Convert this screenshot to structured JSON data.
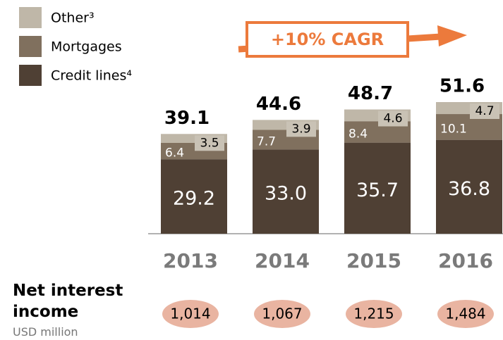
{
  "chart_data": {
    "type": "bar",
    "stacked": true,
    "categories": [
      "2013",
      "2014",
      "2015",
      "2016"
    ],
    "series": [
      {
        "name": "Credit lines⁴",
        "color": "#4f4034",
        "values": [
          29.2,
          33.0,
          35.7,
          36.8
        ],
        "value_labels": [
          "29.2",
          "33.0",
          "35.7",
          "36.8"
        ]
      },
      {
        "name": "Mortgages",
        "color": "#80705e",
        "values": [
          6.4,
          7.7,
          8.4,
          10.1
        ],
        "value_labels": [
          "6.4",
          "7.7",
          "8.4",
          "10.1"
        ]
      },
      {
        "name": "Other³",
        "color": "#bfb7a8",
        "values": [
          3.5,
          3.9,
          4.6,
          4.7
        ],
        "value_labels": [
          "3.5",
          "3.9",
          "4.6",
          "4.7"
        ]
      }
    ],
    "totals": [
      39.1,
      44.6,
      48.7,
      51.6
    ],
    "annotation": "+10% CAGR",
    "net_interest_income": {
      "label": "Net interest income",
      "unit": "USD million",
      "values": [
        1014,
        1067,
        1215,
        1484
      ],
      "value_labels": [
        "1,014",
        "1,067",
        "1,215",
        "1,484"
      ]
    }
  }
}
